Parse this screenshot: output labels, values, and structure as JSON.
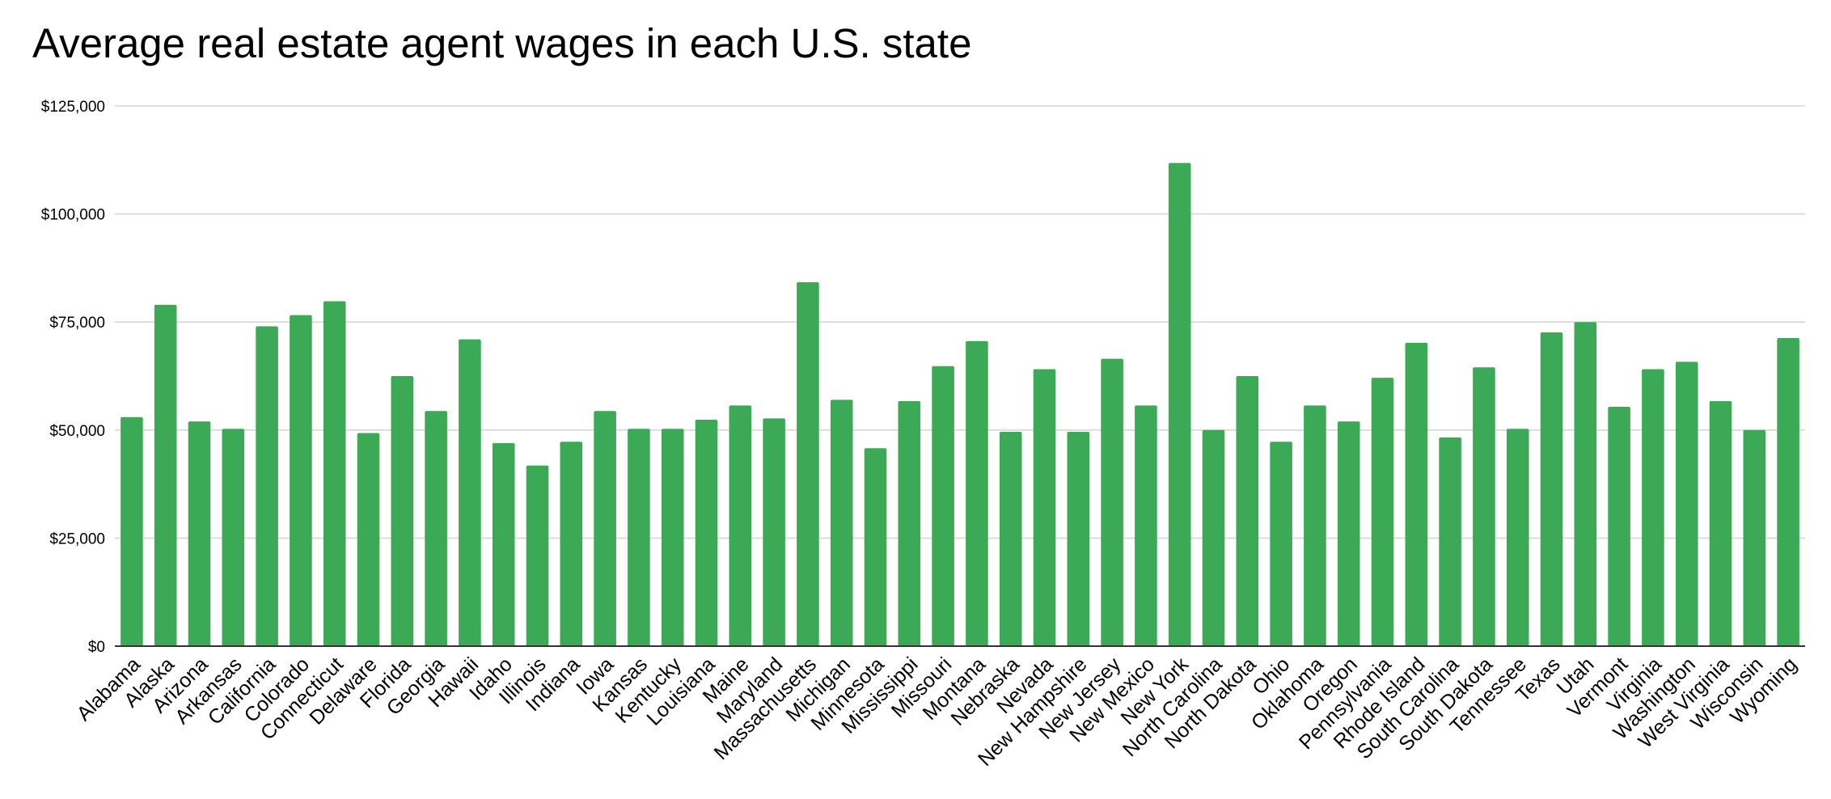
{
  "chart_data": {
    "type": "bar",
    "title": "Average real estate agent wages in each U.S. state",
    "xlabel": "",
    "ylabel": "",
    "ylim": [
      0,
      125000
    ],
    "yticks": [
      0,
      25000,
      50000,
      75000,
      100000,
      125000
    ],
    "ytick_labels": [
      "$0",
      "$25,000",
      "$50,000",
      "$75,000",
      "$100,000",
      "$125,000"
    ],
    "grid": true,
    "legend": "none",
    "bar_color": "#3ca956",
    "categories": [
      "Alabama",
      "Alaska",
      "Arizona",
      "Arkansas",
      "California",
      "Colorado",
      "Connecticut",
      "Delaware",
      "Florida",
      "Georgia",
      "Hawaii",
      "Idaho",
      "Illinois",
      "Indiana",
      "Iowa",
      "Kansas",
      "Kentucky",
      "Louisiana",
      "Maine",
      "Maryland",
      "Massachusetts",
      "Michigan",
      "Minnesota",
      "Mississippi",
      "Missouri",
      "Montana",
      "Nebraska",
      "Nevada",
      "New Hampshire",
      "New Jersey",
      "New Mexico",
      "New York",
      "North Carolina",
      "North Dakota",
      "Ohio",
      "Oklahoma",
      "Oregon",
      "Pennsylvania",
      "Rhode Island",
      "South Carolina",
      "South Dakota",
      "Tennessee",
      "Texas",
      "Utah",
      "Vermont",
      "Virginia",
      "Washington",
      "West Virginia",
      "Wisconsin",
      "Wyoming"
    ],
    "values": [
      53000,
      79000,
      52000,
      50300,
      74000,
      76600,
      79800,
      49300,
      62500,
      54400,
      71000,
      47000,
      41800,
      47300,
      54400,
      50300,
      50300,
      52400,
      55700,
      52700,
      84200,
      57000,
      45800,
      56700,
      64800,
      70600,
      49600,
      64100,
      49600,
      66500,
      55700,
      111800,
      50000,
      62500,
      47300,
      55700,
      52000,
      62100,
      70200,
      48300,
      64500,
      50300,
      72600,
      75000,
      55400,
      64100,
      65800,
      56700,
      50000,
      71300
    ]
  }
}
